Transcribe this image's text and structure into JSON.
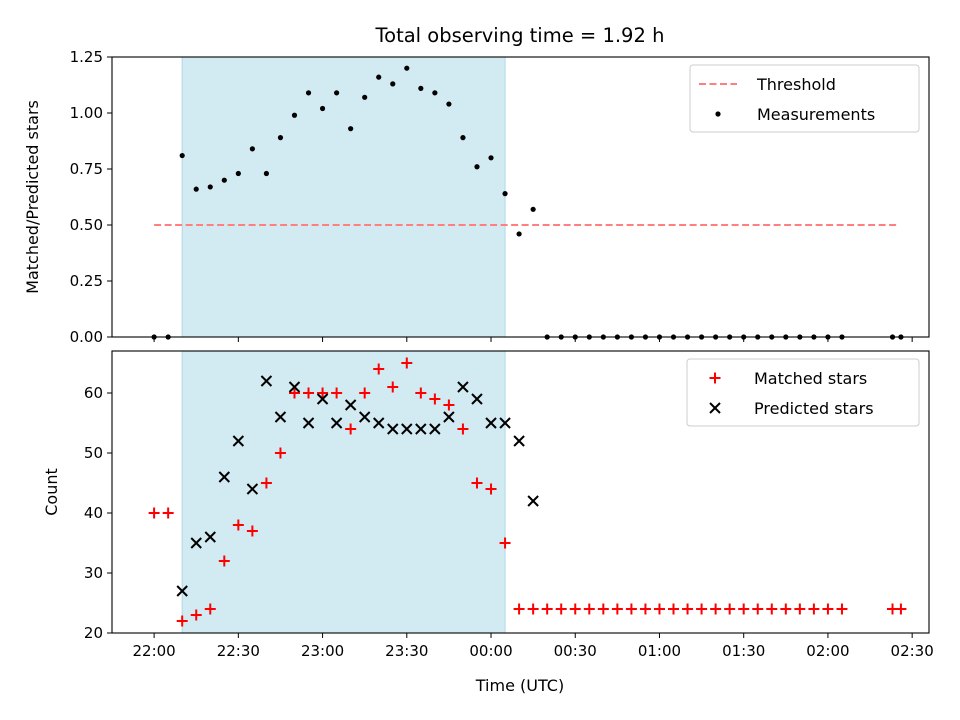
{
  "chart_data": {
    "title": "Total observing time = 1.92 h",
    "xlabel": "Time (UTC)",
    "time_axis": {
      "range_min": [
        1305,
        1596
      ],
      "ticks": [
        {
          "label": "22:00",
          "min": 1320
        },
        {
          "label": "22:30",
          "min": 1350
        },
        {
          "label": "23:00",
          "min": 1380
        },
        {
          "label": "23:30",
          "min": 1410
        },
        {
          "label": "00:00",
          "min": 1440
        },
        {
          "label": "00:30",
          "min": 1470
        },
        {
          "label": "01:00",
          "min": 1500
        },
        {
          "label": "01:30",
          "min": 1530
        },
        {
          "label": "02:00",
          "min": 1560
        },
        {
          "label": "02:30",
          "min": 1590
        }
      ],
      "observing_window_min": [
        1330,
        1445
      ]
    },
    "panels": [
      {
        "type": "scatter",
        "ylabel": "Matched/Predicted stars",
        "ylim": [
          0,
          1.25
        ],
        "yticks": [
          "0.00",
          "0.25",
          "0.50",
          "0.75",
          "1.00",
          "1.25"
        ],
        "ytick_values": [
          0,
          0.25,
          0.5,
          0.75,
          1.0,
          1.25
        ],
        "show_xtick_labels": false,
        "threshold": {
          "name": "Threshold",
          "value": 0.5,
          "x_range_min": [
            1320,
            1585
          ],
          "color": "#ff7f7f"
        },
        "series": [
          {
            "name": "Measurements",
            "color": "#000000",
            "marker": "dot",
            "x_min": [
              1320,
              1325,
              1330,
              1335,
              1340,
              1345,
              1350,
              1355,
              1360,
              1365,
              1370,
              1375,
              1380,
              1385,
              1390,
              1395,
              1400,
              1405,
              1410,
              1415,
              1420,
              1425,
              1430,
              1435,
              1440,
              1445,
              1450,
              1455,
              1460,
              1465,
              1470,
              1475,
              1480,
              1485,
              1490,
              1495,
              1500,
              1505,
              1510,
              1515,
              1520,
              1525,
              1530,
              1535,
              1540,
              1545,
              1550,
              1555,
              1560,
              1565,
              1583,
              1586
            ],
            "y": [
              0,
              0,
              0.81,
              0.66,
              0.67,
              0.7,
              0.73,
              0.84,
              0.73,
              0.89,
              0.99,
              1.09,
              1.02,
              1.09,
              0.93,
              1.07,
              1.16,
              1.13,
              1.2,
              1.11,
              1.09,
              1.04,
              0.89,
              0.76,
              0.8,
              0.64,
              0.46,
              0.57,
              0,
              0,
              0,
              0,
              0,
              0,
              0,
              0,
              0,
              0,
              0,
              0,
              0,
              0,
              0,
              0,
              0,
              0,
              0,
              0,
              0,
              0,
              0,
              0
            ]
          }
        ],
        "legend": [
          "Threshold",
          "Measurements"
        ],
        "legend_position": "top-right"
      },
      {
        "type": "scatter",
        "ylabel": "Count",
        "ylim": [
          20,
          67
        ],
        "yticks": [
          "20",
          "30",
          "40",
          "50",
          "60"
        ],
        "ytick_values": [
          20,
          30,
          40,
          50,
          60
        ],
        "show_xtick_labels": true,
        "series": [
          {
            "name": "Matched stars",
            "color": "#ff0000",
            "marker": "plus",
            "x_min": [
              1320,
              1325,
              1330,
              1335,
              1340,
              1345,
              1350,
              1355,
              1360,
              1365,
              1370,
              1375,
              1380,
              1385,
              1390,
              1395,
              1400,
              1405,
              1410,
              1415,
              1420,
              1425,
              1430,
              1435,
              1440,
              1445,
              1450,
              1455,
              1460,
              1465,
              1470,
              1475,
              1480,
              1485,
              1490,
              1495,
              1500,
              1505,
              1510,
              1515,
              1520,
              1525,
              1530,
              1535,
              1540,
              1545,
              1550,
              1555,
              1560,
              1565,
              1583,
              1586
            ],
            "y": [
              40,
              40,
              22,
              23,
              24,
              32,
              38,
              37,
              45,
              50,
              60,
              60,
              60,
              60,
              54,
              60,
              64,
              61,
              65,
              60,
              59,
              58,
              54,
              45,
              44,
              35,
              24,
              24,
              24,
              24,
              24,
              24,
              24,
              24,
              24,
              24,
              24,
              24,
              24,
              24,
              24,
              24,
              24,
              24,
              24,
              24,
              24,
              24,
              24,
              24,
              24,
              24
            ]
          },
          {
            "name": "Predicted stars",
            "color": "#000000",
            "marker": "x",
            "x_min": [
              1330,
              1335,
              1340,
              1345,
              1350,
              1355,
              1360,
              1365,
              1370,
              1375,
              1380,
              1385,
              1390,
              1395,
              1400,
              1405,
              1410,
              1415,
              1420,
              1425,
              1430,
              1435,
              1440,
              1445,
              1450,
              1455
            ],
            "y": [
              27,
              35,
              36,
              46,
              52,
              44,
              62,
              56,
              61,
              55,
              59,
              55,
              58,
              56,
              55,
              54,
              54,
              54,
              54,
              56,
              61,
              59,
              55,
              55,
              52,
              42
            ]
          }
        ],
        "legend": [
          "Matched stars",
          "Predicted stars"
        ],
        "legend_position": "top-right"
      }
    ],
    "shade_color": "#add8e6"
  }
}
